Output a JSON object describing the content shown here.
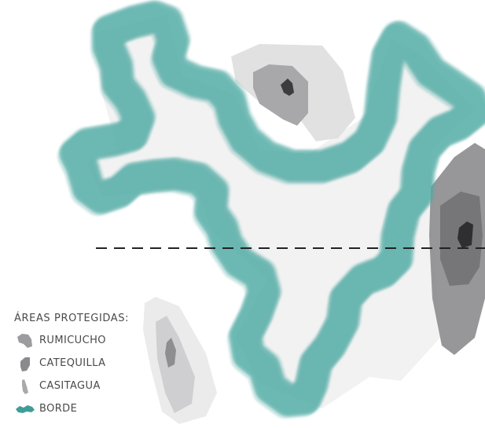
{
  "map": {
    "equator_line": "dashed",
    "colors": {
      "territory": "#f1f1f1",
      "border": "#4a9e98",
      "rumicucho": "#9c9c9e",
      "catequilla": "#8a8a8c",
      "casitagua": "#b9b9bb",
      "core": "#3c3c3e",
      "dashed_line": "#222222"
    }
  },
  "legend": {
    "title": "ÁREAS PROTEGIDAS:",
    "items": [
      {
        "icon": "rumicucho-swatch",
        "label": "RUMICUCHO"
      },
      {
        "icon": "catequilla-swatch",
        "label": "CATEQUILLA"
      },
      {
        "icon": "casitagua-swatch",
        "label": "CASITAGUA"
      },
      {
        "icon": "border-swatch",
        "label": "BORDE"
      }
    ]
  }
}
